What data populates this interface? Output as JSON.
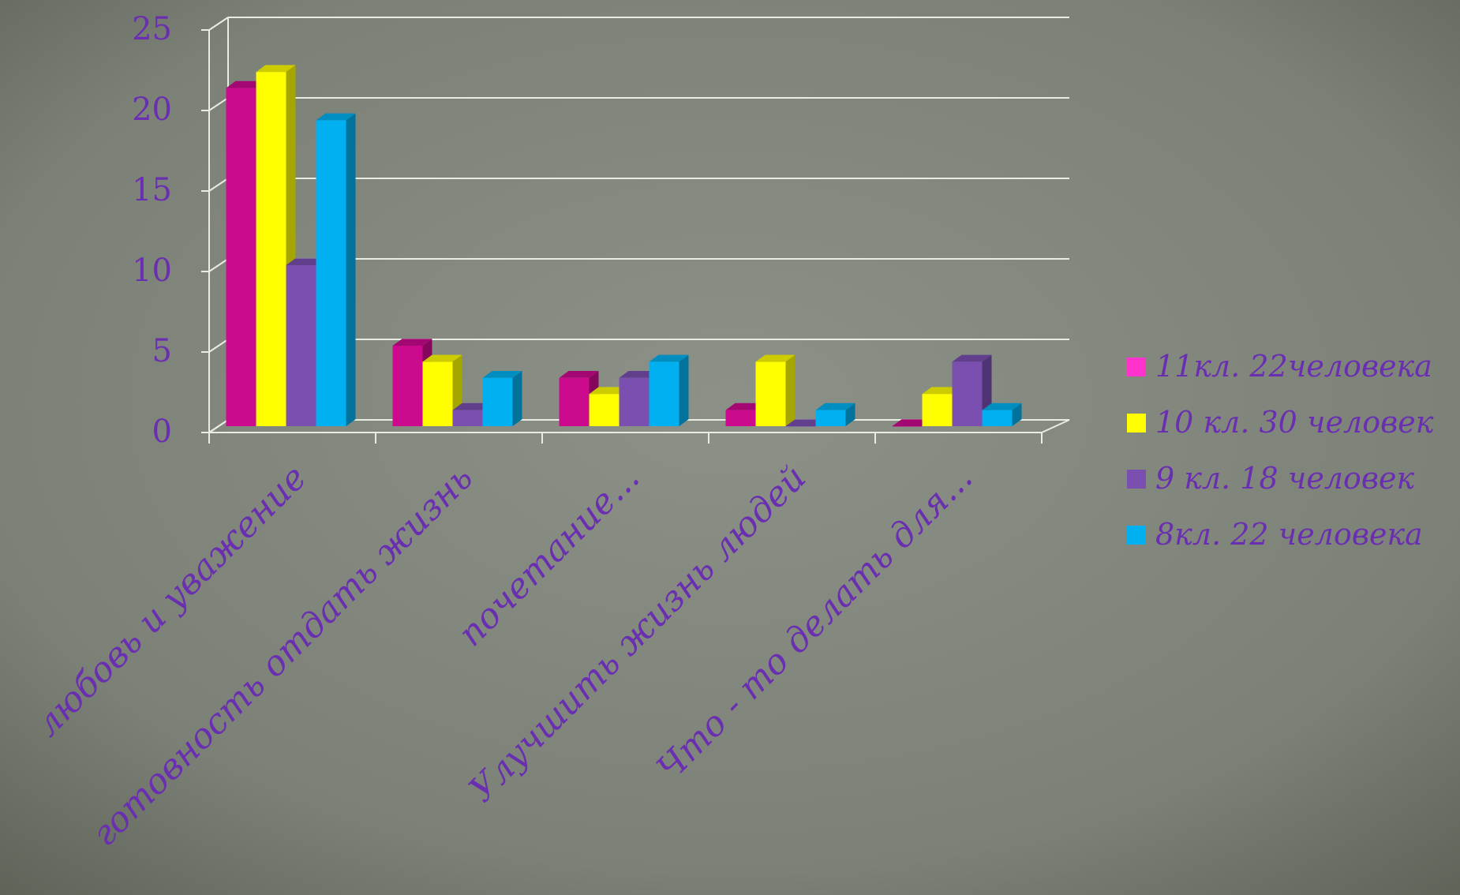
{
  "chart_data": {
    "type": "bar",
    "title": "",
    "xlabel": "",
    "ylabel": "",
    "ylim": [
      0,
      25
    ],
    "yticks": [
      "0",
      "5",
      "10",
      "15",
      "20",
      "25"
    ],
    "grid": true,
    "legend_position": "right",
    "categories": [
      "любовь и уважение",
      "готовность отдать жизнь",
      "почетание...",
      "Улучшить жизнь людей",
      "Что - то делать для..."
    ],
    "series": [
      {
        "name": "11кл. 22человека",
        "color": "#cc0a8e",
        "legend_color": "#ff33cc",
        "values": [
          21,
          5,
          3,
          1,
          0
        ]
      },
      {
        "name": "10 кл. 30 человек",
        "color": "#ffff00",
        "legend_color": "#ffff00",
        "values": [
          22,
          4,
          2,
          4,
          2
        ]
      },
      {
        "name": "9 кл. 18 человек",
        "color": "#7a4fb0",
        "legend_color": "#7a4fb0",
        "values": [
          10,
          1,
          3,
          0,
          4
        ]
      },
      {
        "name": "8кл. 22 человека",
        "color": "#00b0f0",
        "legend_color": "#00b0f0",
        "values": [
          19,
          3,
          4,
          1,
          1
        ]
      }
    ]
  }
}
